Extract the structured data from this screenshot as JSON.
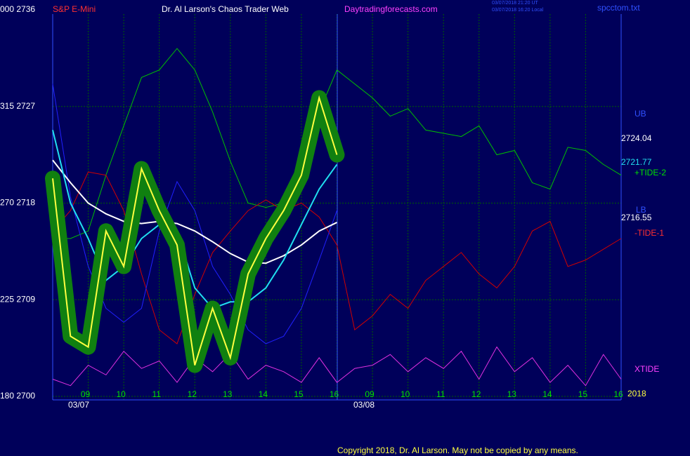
{
  "chart_data": {
    "type": "line",
    "title": "Dr. Al Larson's Chaos Trader Web",
    "header": {
      "top_left": "000 2736",
      "symbol": "S&P E-Mini",
      "site": "Daytradingforecasts.com",
      "time_ut": "03/07/2018 21:20 UT",
      "time_local": "03/07/2018 16:20 Local",
      "file": "spcctom.txt"
    },
    "dates": [
      "03/07",
      "03/08"
    ],
    "copyright": "Copyright 2018, Dr. Al Larson. May not be copied by any means.",
    "right_labels": [
      "UB",
      "2724.04",
      "2721.77",
      "+TIDE-2",
      "LB",
      "2716.55",
      "-TIDE-1",
      "XTIDE",
      "2018"
    ],
    "ylim": [
      2700,
      2736
    ],
    "yticks": [
      {
        "value": 2700,
        "label": "180 2700"
      },
      {
        "value": 2709,
        "label": "225 2709"
      },
      {
        "value": 2718,
        "label": "270 2718"
      },
      {
        "value": 2727,
        "label": "315 2727"
      }
    ],
    "xlim": [
      0,
      16
    ],
    "xticks": [
      {
        "value": 1,
        "label": "09"
      },
      {
        "value": 2,
        "label": "10"
      },
      {
        "value": 3,
        "label": "11"
      },
      {
        "value": 4,
        "label": "12"
      },
      {
        "value": 5,
        "label": "13"
      },
      {
        "value": 6,
        "label": "14"
      },
      {
        "value": 7,
        "label": "15"
      },
      {
        "value": 8,
        "label": "16"
      },
      {
        "value": 9,
        "label": "09"
      },
      {
        "value": 10,
        "label": "10"
      },
      {
        "value": 11,
        "label": "11"
      },
      {
        "value": 12,
        "label": "12"
      },
      {
        "value": 13,
        "label": "13"
      },
      {
        "value": 14,
        "label": "14"
      },
      {
        "value": 15,
        "label": "15"
      },
      {
        "value": 16,
        "label": "16"
      }
    ],
    "grid": true,
    "x": [
      0,
      0.5,
      1,
      1.5,
      2,
      2.5,
      3,
      3.5,
      4,
      4.5,
      5,
      5.5,
      6,
      6.5,
      7,
      7.5,
      8,
      8.5,
      9,
      9.5,
      10,
      10.5,
      11,
      11.5,
      12,
      12.5,
      13,
      13.5,
      14,
      14.5,
      15,
      15.5,
      16
    ],
    "series": [
      {
        "color": "#00c000",
        "values": [
          2714.7,
          2714.7,
          2715.4,
          2720.6,
          2725.2,
          2729.7,
          2730.4,
          2732.4,
          2730.4,
          2726.5,
          2721.9,
          2718.0,
          2717.6,
          2718.0,
          2720.6,
          2726.5,
          2730.4,
          2729.1,
          2727.8,
          2726.1,
          2726.8,
          2724.8,
          2724.5,
          2724.2,
          2725.2,
          2722.5,
          2722.9,
          2719.9,
          2719.3,
          2723.2,
          2722.9,
          2721.6,
          2720.6
        ]
      },
      {
        "color": "#d00000",
        "values": [
          2715.4,
          2717.3,
          2720.9,
          2720.6,
          2717.3,
          2711.4,
          2706.2,
          2704.9,
          2709.5,
          2713.4,
          2715.4,
          2717.3,
          2718.3,
          2717.3,
          2718.0,
          2716.7,
          2714.1,
          2706.2,
          2707.5,
          2709.5,
          2708.2,
          2710.8,
          2712.1,
          2713.4,
          2711.4,
          2710.1,
          2712.1,
          2715.4,
          2716.3,
          2712.1,
          2712.7,
          2713.7,
          2714.7
        ]
      },
      {
        "color": "#2020ff",
        "values": [
          2729.1,
          2718.6,
          2712.1,
          2708.2,
          2706.9,
          2708.2,
          2715.4,
          2720.0,
          2717.3,
          2712.1,
          2709.5,
          2706.2,
          2704.9,
          2705.6,
          2708.2,
          2712.7,
          2717.3,
          null,
          null,
          null,
          null,
          null,
          null,
          null,
          null,
          null,
          null,
          null,
          null,
          null,
          null,
          null,
          null
        ]
      },
      {
        "color": "#e030e0",
        "values": [
          2701.6,
          2701.0,
          2702.9,
          2702.0,
          2704.2,
          2702.6,
          2703.3,
          2701.3,
          2703.6,
          2702.3,
          2704.0,
          2701.6,
          2702.9,
          2702.3,
          2701.3,
          2703.6,
          2701.3,
          2702.6,
          2702.9,
          2703.9,
          2702.3,
          2703.6,
          2702.6,
          2704.2,
          2701.6,
          2704.6,
          2702.3,
          2703.6,
          2701.3,
          2702.9,
          2701.0,
          2703.9,
          2701.6
        ]
      },
      {
        "color": "#ffffff",
        "values": [
          2722.0,
          2719.9,
          2718.0,
          2717.0,
          2716.3,
          2716.1,
          2716.3,
          2716.1,
          2715.4,
          2714.4,
          2713.3,
          2712.5,
          2712.4,
          2713.1,
          2714.1,
          2715.4,
          2716.2,
          null,
          null,
          null,
          null,
          null,
          null,
          null,
          null,
          null,
          null,
          null,
          null,
          null,
          null,
          null,
          null
        ]
      },
      {
        "color": "#20e0f0",
        "values": [
          2724.8,
          2718.0,
          2714.7,
          2710.8,
          2712.1,
          2714.7,
          2716.0,
          2715.4,
          2710.1,
          2708.2,
          2708.8,
          2708.8,
          2710.1,
          2712.7,
          2716.0,
          2719.3,
          2721.6,
          null,
          null,
          null,
          null,
          null,
          null,
          null,
          null,
          null,
          null,
          null,
          null,
          null,
          null,
          null,
          null
        ]
      },
      {
        "color": "#ffff40",
        "values": [
          2720.3,
          2705.6,
          2704.6,
          2715.4,
          2712.1,
          2721.2,
          2717.3,
          2714.1,
          2702.9,
          2708.2,
          2703.6,
          2711.4,
          2714.7,
          2717.3,
          2720.6,
          2727.8,
          2722.5,
          null,
          null,
          null,
          null,
          null,
          null,
          null,
          null,
          null,
          null,
          null,
          null,
          null,
          null,
          null,
          null
        ]
      }
    ]
  }
}
